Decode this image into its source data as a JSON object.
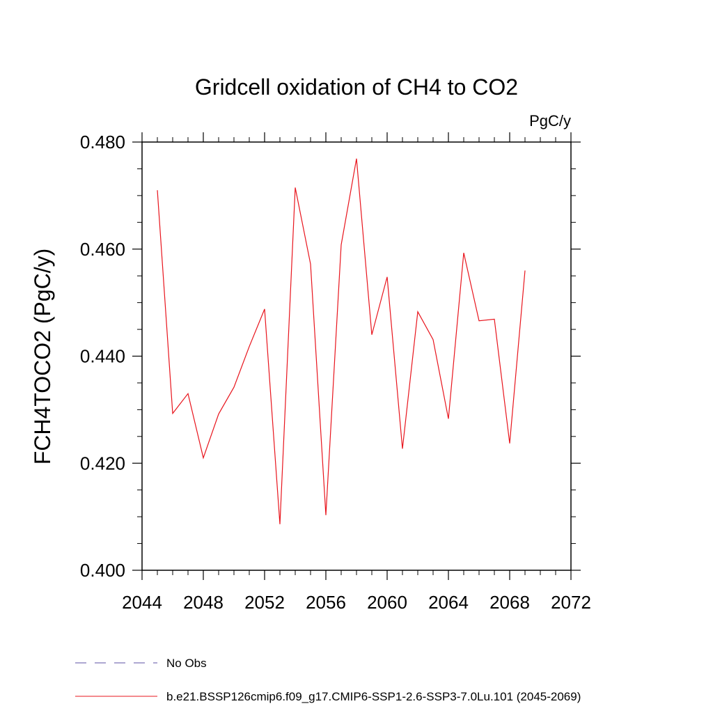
{
  "chart_data": {
    "type": "line",
    "title": "Gridcell oxidation of CH4 to CO2",
    "units": "PgC/y",
    "ylabel": "FCH4TOCO2  (PgC/y)",
    "xlabel": "",
    "xlim": [
      2044,
      2072
    ],
    "ylim": [
      0.4,
      0.48
    ],
    "x_ticks": [
      "2044",
      "2048",
      "2052",
      "2056",
      "2060",
      "2064",
      "2068",
      "2072"
    ],
    "y_ticks": [
      "0.400",
      "0.420",
      "0.440",
      "0.460",
      "0.480"
    ],
    "grid": false,
    "legend_position": "bottom",
    "series": [
      {
        "name": "b.e21.BSSP126cmip6.f09_g17.CMIP6-SSP1-2.6-SSP3-7.0Lu.101 (2045-2069)",
        "color": "#e8141c",
        "style": "solid",
        "x": [
          2045,
          2046,
          2047,
          2048,
          2049,
          2050,
          2051,
          2052,
          2053,
          2054,
          2055,
          2056,
          2057,
          2058,
          2059,
          2060,
          2061,
          2062,
          2063,
          2064,
          2065,
          2066,
          2067,
          2068,
          2069
        ],
        "y": [
          0.471,
          0.4293,
          0.433,
          0.421,
          0.4292,
          0.4342,
          0.4418,
          0.4488,
          0.4086,
          0.4715,
          0.4572,
          0.4103,
          0.4608,
          0.4769,
          0.444,
          0.4548,
          0.4227,
          0.4483,
          0.4431,
          0.4283,
          0.4593,
          0.4466,
          0.4469,
          0.4237,
          0.456
        ]
      }
    ],
    "legend": [
      {
        "label": "No Obs",
        "color": "#5b4fa3",
        "style": "dashed"
      },
      {
        "label": "b.e21.BSSP126cmip6.f09_g17.CMIP6-SSP1-2.6-SSP3-7.0Lu.101 (2045-2069)",
        "color": "#e8141c",
        "style": "solid"
      }
    ]
  }
}
